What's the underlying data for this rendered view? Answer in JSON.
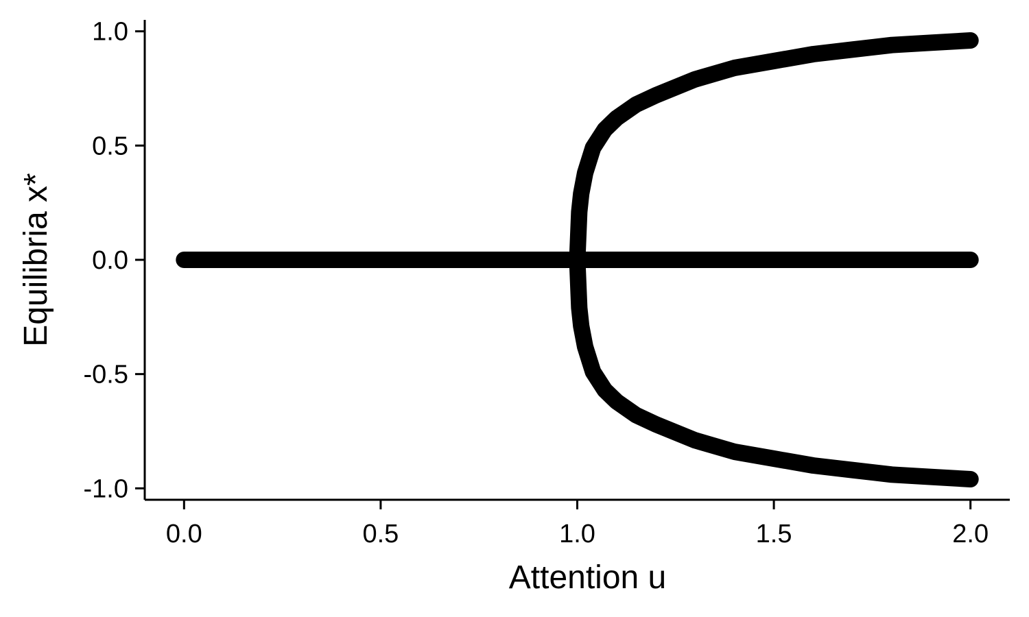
{
  "chart_data": {
    "type": "scatter",
    "title": "",
    "xlabel": "Attention u",
    "ylabel": "Equilibria x*",
    "xlim": [
      -0.1,
      2.1
    ],
    "ylim": [
      -1.05,
      1.05
    ],
    "x_ticks": [
      0.0,
      0.5,
      1.0,
      1.5,
      2.0
    ],
    "x_tick_labels": [
      "0.0",
      "0.5",
      "1.0",
      "1.5",
      "2.0"
    ],
    "y_ticks": [
      1.0,
      0.5,
      0.0,
      -0.5,
      -1.0
    ],
    "y_tick_labels": [
      "1.0",
      "0.5",
      "0.0",
      "-0.5",
      "-1.0"
    ],
    "grid": false,
    "legend": "none",
    "marker_color": "#000000",
    "series": [
      {
        "x": [
          0.0,
          0.25,
          0.5,
          0.75,
          1.0,
          1.25,
          1.5,
          1.75,
          2.0
        ],
        "y": [
          0.0,
          0.0,
          0.0,
          0.0,
          0.0,
          0.0,
          0.0,
          0.0,
          0.0
        ]
      },
      {
        "x": [
          1.0,
          1.005,
          1.01,
          1.02,
          1.04,
          1.07,
          1.1,
          1.15,
          1.2,
          1.3,
          1.4,
          1.5,
          1.6,
          1.7,
          1.8,
          1.9,
          2.0
        ],
        "y": [
          0.0,
          0.21,
          0.29,
          0.38,
          0.49,
          0.57,
          0.62,
          0.68,
          0.72,
          0.79,
          0.84,
          0.87,
          0.9,
          0.92,
          0.94,
          0.95,
          0.96
        ]
      },
      {
        "x": [
          1.0,
          1.005,
          1.01,
          1.02,
          1.04,
          1.07,
          1.1,
          1.15,
          1.2,
          1.3,
          1.4,
          1.5,
          1.6,
          1.7,
          1.8,
          1.9,
          2.0
        ],
        "y": [
          0.0,
          -0.21,
          -0.29,
          -0.38,
          -0.49,
          -0.57,
          -0.62,
          -0.68,
          -0.72,
          -0.79,
          -0.84,
          -0.87,
          -0.9,
          -0.92,
          -0.94,
          -0.95,
          -0.96
        ]
      }
    ]
  }
}
